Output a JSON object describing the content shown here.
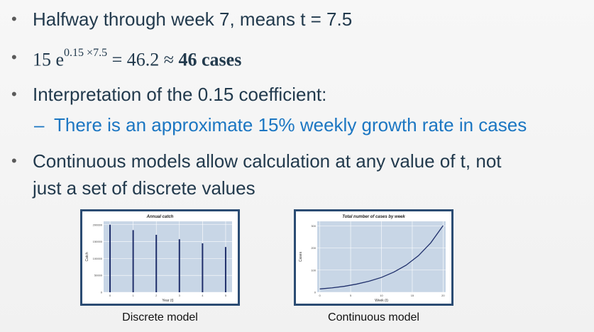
{
  "bullets": {
    "b1": "Halfway through week 7, means t = 7.5",
    "b2_base": "15 e",
    "b2_exp": "0.15 ×7.5",
    "b2_eq": "= 46.2 ≈",
    "b2_bold": "46 cases",
    "b3": "Interpretation of the 0.15 coefficient:",
    "b3_sub_dash": "–",
    "b3_sub": "There is an approximate 15% weekly growth rate in cases",
    "b4_line1": "Continuous models allow calculation at any value of t, not",
    "b4_line2": "just a set of discrete values"
  },
  "captions": {
    "left": "Discrete model",
    "right": "Continuous model"
  },
  "colors": {
    "text": "#223a4d",
    "sub_text": "#1b76c2",
    "chart_border": "#2b4c73",
    "plot_bg": "#c8d6e6",
    "series": "#1f2f6b"
  },
  "chart_data": [
    {
      "type": "bar",
      "title": "Annual catch",
      "xlabel": "Year (t)",
      "ylabel": "Catch",
      "x": [
        0,
        1,
        2,
        3,
        4,
        5
      ],
      "values": [
        200000,
        184000,
        170000,
        157000,
        145000,
        134000
      ],
      "ylim": [
        0,
        210000
      ],
      "yticks": [
        "0",
        "50000",
        "100000",
        "150000",
        "200000"
      ],
      "xticks": [
        "0",
        "1",
        "2",
        "3",
        "4",
        "5"
      ]
    },
    {
      "type": "line",
      "title": "Total number of cases by week",
      "xlabel": "Week (t)",
      "ylabel": "Cases",
      "x": [
        0,
        2,
        4,
        6,
        8,
        10,
        12,
        14,
        16,
        18,
        20
      ],
      "values": [
        15,
        20,
        27,
        37,
        50,
        67,
        91,
        122,
        165,
        223,
        301
      ],
      "ylim": [
        0,
        320
      ],
      "yticks": [
        "0",
        "100",
        "200",
        "300"
      ],
      "xticks": [
        "0",
        "5",
        "10",
        "15",
        "20"
      ]
    }
  ]
}
